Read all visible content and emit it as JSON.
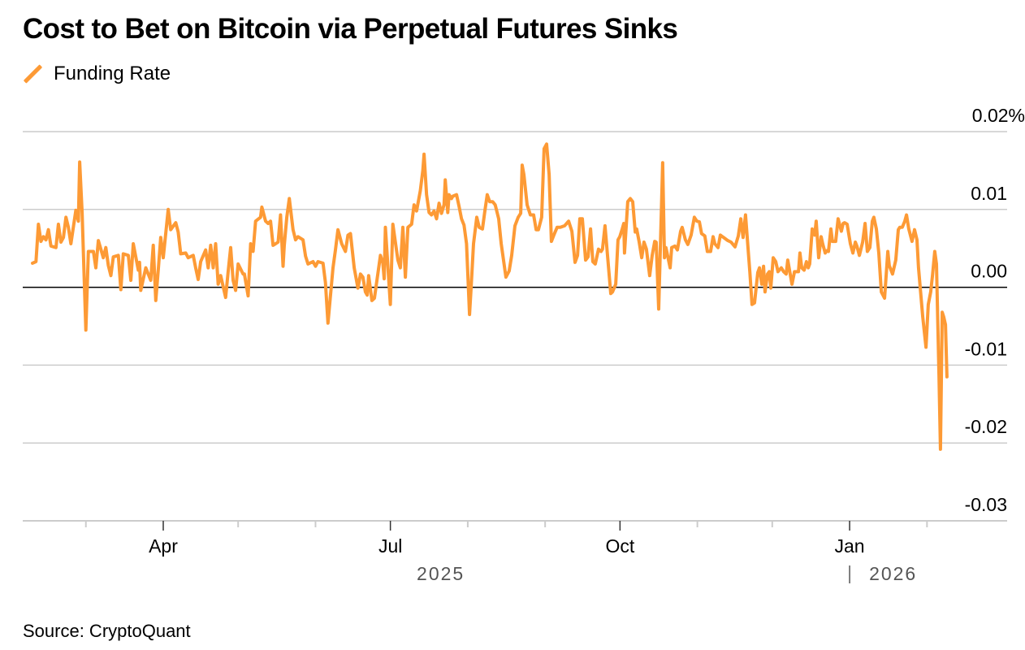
{
  "chart_data": {
    "type": "line",
    "title": "Cost to Bet on Bitcoin via Perpetual Futures Sinks",
    "source": "Source: CryptoQuant",
    "xlabel": "",
    "ylabel": "",
    "x_unit": "days since 2025-01-01",
    "xlim": [
      34,
      414
    ],
    "ylim": [
      -0.03,
      0.02
    ],
    "grid": true,
    "legend_position": "top-left",
    "y_ticks": [
      {
        "value": 0.02,
        "label": "0.02%"
      },
      {
        "value": 0.01,
        "label": "0.01"
      },
      {
        "value": 0.0,
        "label": "0.00"
      },
      {
        "value": -0.01,
        "label": "-0.01"
      },
      {
        "value": -0.02,
        "label": "-0.02"
      },
      {
        "value": -0.03,
        "label": "-0.03"
      }
    ],
    "x_ticks": [
      {
        "day": 59,
        "label": "",
        "major": false
      },
      {
        "day": 90,
        "label": "Apr",
        "major": true
      },
      {
        "day": 120,
        "label": "",
        "major": false
      },
      {
        "day": 151,
        "label": "",
        "major": false
      },
      {
        "day": 181,
        "label": "Jul",
        "major": true
      },
      {
        "day": 212,
        "label": "",
        "major": false
      },
      {
        "day": 243,
        "label": "",
        "major": false
      },
      {
        "day": 273,
        "label": "Oct",
        "major": true
      },
      {
        "day": 304,
        "label": "",
        "major": false
      },
      {
        "day": 334,
        "label": "",
        "major": false
      },
      {
        "day": 365,
        "label": "Jan",
        "major": true
      },
      {
        "day": 396,
        "label": "",
        "major": false
      }
    ],
    "year_labels": [
      {
        "day": 181,
        "label": "2025",
        "divider": false
      },
      {
        "day": 365,
        "label": "2026",
        "divider": true
      }
    ],
    "series": [
      {
        "name": "Funding Rate",
        "color": "#fd9a35",
        "x": [
          37.6,
          39,
          40,
          41,
          42,
          43,
          44,
          45,
          47,
          48,
          49,
          50,
          51,
          52,
          53,
          55,
          56,
          56.5,
          57.5,
          59,
          60,
          62,
          63,
          64,
          66,
          67,
          68,
          69,
          70,
          72,
          73,
          74,
          76,
          77,
          78,
          80,
          80.5,
          81,
          83,
          85,
          86,
          87,
          88,
          89,
          90,
          92,
          93,
          95,
          96,
          97,
          99,
          100,
          102,
          103,
          104,
          105,
          107,
          108,
          109,
          110,
          111,
          112,
          113,
          115,
          116,
          117,
          118,
          119,
          120,
          122,
          122.5,
          124,
          125,
          126,
          127,
          129,
          129.5,
          131,
          132,
          133,
          134,
          135,
          136,
          137,
          138,
          138.5,
          139.5,
          140.5,
          142,
          143,
          144,
          146,
          147,
          148,
          150,
          151,
          152,
          154,
          155,
          156,
          158,
          159,
          160,
          161.5,
          163,
          164,
          165,
          166.5,
          168,
          169,
          170,
          171,
          171.7,
          172.3,
          173.6,
          174.6,
          177,
          178,
          178.5,
          179,
          181,
          182,
          184,
          185,
          186,
          187,
          188,
          189.5,
          190.5,
          191.5,
          193,
          194,
          194.5,
          195.5,
          196.5,
          197.5,
          198.5,
          199.5,
          200.5,
          201.5,
          202.5,
          203,
          204,
          204.5,
          205.5,
          206,
          207.5,
          208.5,
          209.5,
          210.5,
          211.5,
          212.7,
          213.3,
          214.3,
          215.6,
          216.6,
          217.9,
          218.9,
          219.8,
          220.8,
          222,
          223,
          224.4,
          225.4,
          227.3,
          228.6,
          229.6,
          230.9,
          232.2,
          233.2,
          233.8,
          234.5,
          235.8,
          237.1,
          238.4,
          239.4,
          240.3,
          241.6,
          242.6,
          243.6,
          244.6,
          245.5,
          246.5,
          247.8,
          249.1,
          250.8,
          252.4,
          253.7,
          255,
          256,
          256.9,
          257.9,
          259.2,
          260.2,
          261.2,
          262.1,
          263.1,
          264.4,
          265.4,
          266,
          267,
          268.7,
          269.3,
          270,
          271.3,
          272.2,
          272.9,
          273.9,
          274.5,
          274.8,
          276.1,
          277.1,
          278.1,
          279.1,
          279.7,
          280.7,
          281.7,
          282.6,
          283.6,
          284.9,
          285.9,
          286.9,
          287.5,
          288.5,
          290.1,
          290.8,
          291.4,
          293.1,
          293.7,
          295,
          296,
          297.3,
          297.9,
          299.2,
          300.2,
          301.5,
          302.8,
          303.8,
          304.8,
          305.7,
          307,
          308,
          309.3,
          310.3,
          311,
          312.3,
          313.2,
          314.5,
          316.2,
          317.5,
          319.1,
          320.4,
          321.4,
          322.3,
          323.3,
          325,
          325.9,
          326.9,
          328.2,
          328.9,
          329.8,
          330.5,
          331.1,
          332.1,
          332.8,
          333.4,
          334.4,
          335.4,
          336.3,
          337.6,
          338.6,
          339.6,
          340.2,
          341.9,
          342.9,
          344.5,
          345.1,
          345.8,
          346.8,
          347.7,
          348.4,
          349,
          350,
          351,
          351.6,
          352.6,
          353.6,
          354.2,
          355.2,
          355.9,
          356.5,
          357.5,
          358.1,
          359.4,
          360.4,
          361.7,
          362.4,
          363,
          364,
          365.3,
          366.3,
          367.3,
          367.9,
          368.9,
          370.2,
          371.2,
          372.1,
          373.1,
          374.1,
          374.7,
          375.7,
          376.7,
          377.7,
          379,
          380.3,
          380.9,
          382.2,
          383.5,
          384.5,
          385.1,
          386.1,
          387.1,
          387.8,
          388.7,
          390,
          391,
          392,
          392.6,
          394.3,
          395.6,
          396.5,
          397.5,
          398.2,
          399.1,
          399.8,
          400.8,
          401.4,
          402.1,
          402.7,
          403.4,
          404
        ],
        "values": [
          0.0031,
          0.0033,
          0.0081,
          0.0059,
          0.0065,
          0.0061,
          0.0074,
          0.0053,
          0.0051,
          0.0081,
          0.0058,
          0.0064,
          0.009,
          0.0077,
          0.0056,
          0.0099,
          0.0085,
          0.0161,
          0.0096,
          -0.0055,
          0.0046,
          0.0046,
          0.0025,
          0.006,
          0.0038,
          0.0051,
          0.0028,
          0.0015,
          0.0039,
          0.0041,
          -0.0003,
          0.0043,
          0.0041,
          0.0009,
          0.0056,
          0.0022,
          0.0032,
          -0.0004,
          0.0025,
          0.0009,
          0.0054,
          -0.0017,
          0.0023,
          0.0064,
          0.0038,
          0.01,
          0.0074,
          0.0083,
          0.0071,
          0.0043,
          0.0044,
          0.0038,
          0.0041,
          0.0025,
          0.001,
          0.0033,
          0.0048,
          0.0025,
          0.0054,
          0.0025,
          0.0056,
          0.0004,
          0.0015,
          -0.0013,
          0.002,
          0.0051,
          0.0009,
          -0.0004,
          0.003,
          0.0017,
          0.0017,
          -0.0011,
          0.0056,
          0.0046,
          0.0085,
          0.009,
          0.0103,
          0.0085,
          0.0082,
          0.0085,
          0.0054,
          0.0056,
          0.0058,
          0.0093,
          0.0027,
          0.0054,
          0.009,
          0.0114,
          0.0074,
          0.0061,
          0.0065,
          0.0061,
          0.004,
          0.003,
          0.0033,
          0.0027,
          0.0033,
          0.0031,
          0.0006,
          -0.0046,
          0.0025,
          0.0048,
          0.0074,
          0.0056,
          0.0046,
          0.0067,
          0.0069,
          0.0025,
          -0.0001,
          0.0017,
          0.0013,
          -0.0006,
          -0.001,
          0.0015,
          -0.0017,
          -0.0014,
          0.0041,
          0.0031,
          0.0011,
          0.0077,
          -0.0022,
          0.0081,
          0.0035,
          0.0025,
          0.0077,
          0.0013,
          0.0077,
          0.0081,
          0.0106,
          0.0098,
          0.0124,
          0.015,
          0.0171,
          0.0119,
          0.0096,
          0.0093,
          0.0098,
          0.0088,
          0.0108,
          0.0095,
          0.0106,
          0.0138,
          0.0096,
          0.0119,
          0.0114,
          0.0117,
          0.0119,
          0.0104,
          0.0088,
          0.008,
          0.0056,
          -0.0035,
          -0.0003,
          0.0056,
          0.009,
          0.0077,
          0.0075,
          0.0099,
          0.0119,
          0.011,
          0.011,
          0.0106,
          0.0088,
          0.0056,
          0.0013,
          0.0021,
          0.0041,
          0.0079,
          0.009,
          0.0095,
          0.0157,
          0.0145,
          0.0106,
          0.0093,
          0.0093,
          0.0074,
          0.0074,
          0.009,
          0.0178,
          0.0184,
          0.0145,
          0.0059,
          0.0067,
          0.0077,
          0.0077,
          0.0079,
          0.0085,
          0.0072,
          0.0032,
          0.0041,
          0.0088,
          0.0088,
          0.0035,
          0.0039,
          0.0075,
          0.0033,
          0.003,
          0.0049,
          0.0046,
          0.0049,
          0.0079,
          0.0015,
          -0.0008,
          -0.0006,
          0.0004,
          0.0061,
          0.0065,
          0.0075,
          0.0082,
          0.0044,
          0.011,
          0.0114,
          0.011,
          0.0071,
          0.0075,
          0.0058,
          0.0038,
          0.0058,
          0.0049,
          0.0015,
          0.0041,
          0.0059,
          0.0058,
          -0.0028,
          0.016,
          0.0038,
          0.0051,
          0.0025,
          0.0051,
          0.0053,
          0.0048,
          0.0072,
          0.0077,
          0.0061,
          0.0055,
          0.0067,
          0.009,
          0.0085,
          0.0084,
          0.0069,
          0.0066,
          0.0046,
          0.0046,
          0.0065,
          0.0056,
          0.0051,
          0.0067,
          0.0064,
          0.006,
          0.0058,
          0.0052,
          0.0066,
          0.0088,
          0.0064,
          0.0093,
          0.002,
          -0.0022,
          -0.002,
          0.0019,
          0.0025,
          0.0004,
          0.0027,
          -0.0006,
          0.0017,
          0.002,
          -0.0001,
          0.0038,
          0.0033,
          0.002,
          0.0025,
          0.002,
          0.0017,
          0.0035,
          0.0004,
          0.002,
          0.002,
          0.0044,
          0.0025,
          0.0022,
          0.0033,
          0.0025,
          0.003,
          0.0075,
          0.0067,
          0.0085,
          0.0038,
          0.0065,
          0.0056,
          0.0044,
          0.0047,
          0.0046,
          0.0075,
          0.0059,
          0.0059,
          0.0088,
          0.0072,
          0.0082,
          0.0083,
          0.0081,
          0.0056,
          0.0044,
          0.0058,
          0.0053,
          0.0041,
          0.0058,
          0.0082,
          0.0046,
          0.0051,
          0.0085,
          0.009,
          0.0075,
          0.0044,
          -0.0006,
          -0.0014,
          0.0046,
          0.0028,
          0.0017,
          0.0035,
          0.0074,
          0.0077,
          0.0077,
          0.0085,
          0.0093,
          0.0075,
          0.0059,
          0.0074,
          0.0061,
          0.0025,
          -0.0038,
          -0.0077,
          -0.0022,
          -0.0006,
          0.0015,
          0.0046,
          0.003,
          -0.0113,
          -0.0208,
          -0.0032,
          -0.0038,
          -0.0048,
          -0.0115
        ]
      }
    ]
  }
}
